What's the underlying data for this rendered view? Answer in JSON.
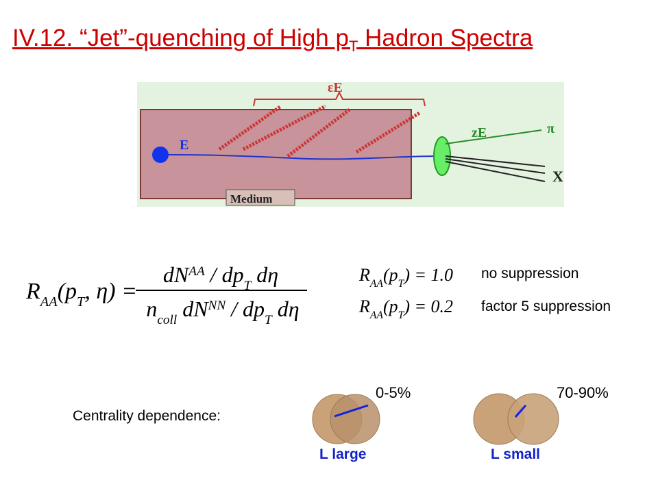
{
  "title": {
    "segments": [
      {
        "t": "IV.12. “Jet”-quenching of High p"
      },
      {
        "t": "T",
        "shift": "sub"
      },
      {
        "t": " Hadron Spectra"
      }
    ]
  },
  "diagram": {
    "labels": {
      "emitted": "εE",
      "initial": "E",
      "leading": "zE",
      "hadron": "π",
      "rest": "X",
      "medium": "Medium"
    }
  },
  "formula": {
    "lhs": [
      {
        "t": "R"
      },
      {
        "t": "AA",
        "shift": "sub"
      },
      {
        "t": "("
      },
      {
        "t": "p"
      },
      {
        "t": "T",
        "shift": "sub"
      },
      {
        "t": ", η) ="
      }
    ],
    "numerator": [
      {
        "t": "dN"
      },
      {
        "t": "AA",
        "shift": "super"
      },
      {
        "t": " / dp"
      },
      {
        "t": "T",
        "shift": "sub"
      },
      {
        "t": " dη"
      }
    ],
    "denominator": [
      {
        "t": "n"
      },
      {
        "t": "coll",
        "shift": "sub"
      },
      {
        "t": " dN"
      },
      {
        "t": "NN",
        "shift": "super"
      },
      {
        "t": " / dp"
      },
      {
        "t": "T",
        "shift": "sub"
      },
      {
        "t": " dη"
      }
    ]
  },
  "cases": [
    {
      "formula": [
        {
          "t": "R"
        },
        {
          "t": "AA",
          "shift": "sub"
        },
        {
          "t": "(p"
        },
        {
          "t": "T",
          "shift": "sub"
        },
        {
          "t": ") = 1.0"
        }
      ],
      "description": "no suppression"
    },
    {
      "formula": [
        {
          "t": "R"
        },
        {
          "t": "AA",
          "shift": "sub"
        },
        {
          "t": "(p"
        },
        {
          "t": "T",
          "shift": "sub"
        },
        {
          "t": ") = 0.2"
        }
      ],
      "description": "factor 5 suppression"
    }
  ],
  "centrality": {
    "label": "Centrality dependence:",
    "panels": [
      {
        "range": "0-5%",
        "path_length": "L large"
      },
      {
        "range": "70-90%",
        "path_length": "L small"
      }
    ]
  }
}
